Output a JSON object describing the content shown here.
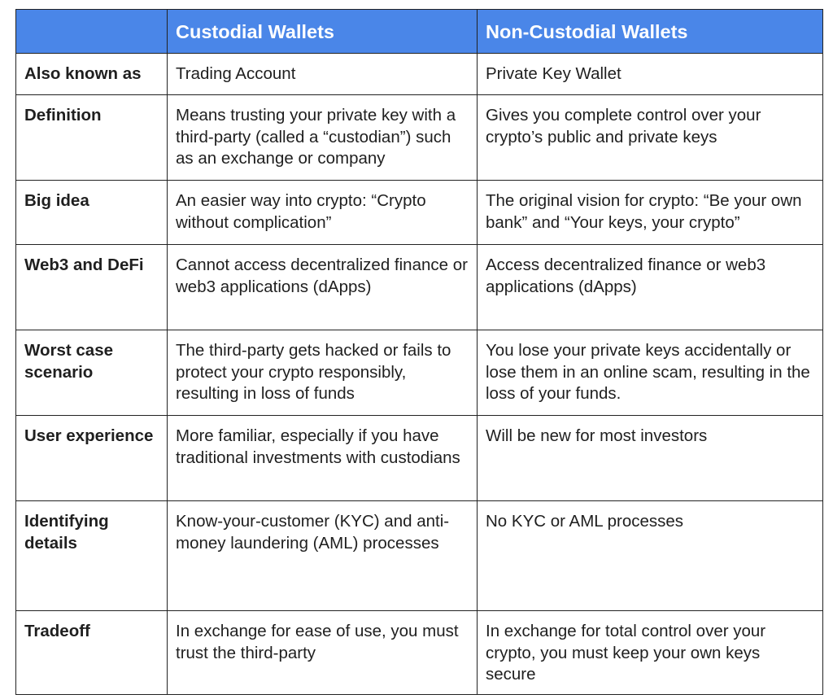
{
  "table": {
    "headers": [
      "",
      "Custodial Wallets",
      "Non-Custodial Wallets"
    ],
    "rows": [
      {
        "label": "Also known as",
        "custodial": "Trading Account",
        "non_custodial": "Private Key Wallet"
      },
      {
        "label": "Definition",
        "custodial": "Means trusting your private key with a third-party (called a “custodian”) such as an exchange or company",
        "non_custodial": "Gives you complete control over your crypto’s public and private keys"
      },
      {
        "label": "Big idea",
        "custodial": "An easier way into crypto: “Crypto without complication”",
        "non_custodial": "The original vision for crypto: “Be your own bank” and “Your keys, your crypto”"
      },
      {
        "label": "Web3 and DeFi",
        "custodial": "Cannot access decentralized finance or web3 applications (dApps)",
        "non_custodial": "Access decentralized finance or web3 applications (dApps)"
      },
      {
        "label": "Worst case scenario",
        "custodial": "The third-party gets hacked or fails to protect your crypto responsibly, resulting in loss of funds",
        "non_custodial": "You lose your private keys accidentally or lose them in an online scam, resulting in the loss of your funds."
      },
      {
        "label": "User experience",
        "custodial": "More familiar, especially if you have traditional investments with custodians",
        "non_custodial": "Will be new for most investors"
      },
      {
        "label": "Identifying details",
        "custodial": "Know-your-customer (KYC) and anti-money laundering (AML) processes",
        "non_custodial": "No KYC or AML processes"
      },
      {
        "label": "Tradeoff",
        "custodial": "In exchange for ease of use, you must trust the third-party",
        "non_custodial": "In exchange for total control over your crypto, you must keep your own keys secure"
      }
    ]
  },
  "colors": {
    "header_background": "#4a86e8",
    "header_text": "#ffffff",
    "border": "#222222",
    "body_text": "#1f1f1f"
  }
}
